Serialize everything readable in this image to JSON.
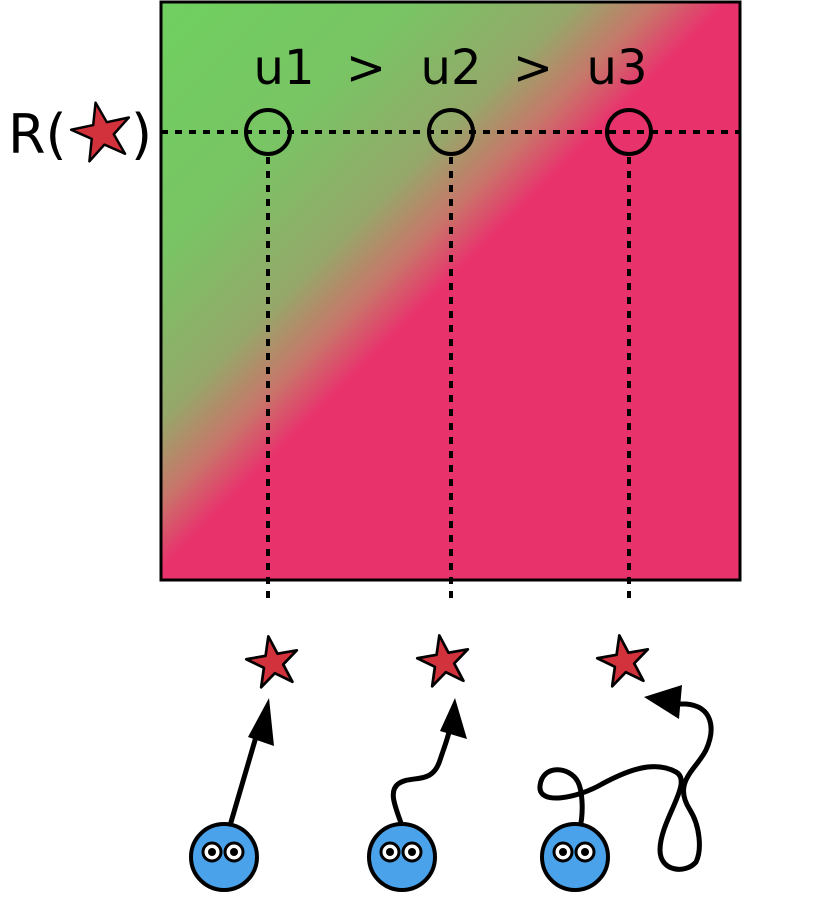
{
  "labels": {
    "reward_prefix": "R(",
    "reward_suffix": ")",
    "u1": "u1",
    "gt1": ">",
    "u2": "u2",
    "gt2": ">",
    "u3": "u3"
  },
  "colors": {
    "good": "#6fd05f",
    "bad": "#e8326c",
    "star": "#d1323c",
    "agent": "#4aa3ea",
    "line": "#000000"
  },
  "icons": {
    "reward_symbol": "star-icon",
    "agents": "robot-face-icon",
    "paths": "arrow-path-icon"
  }
}
